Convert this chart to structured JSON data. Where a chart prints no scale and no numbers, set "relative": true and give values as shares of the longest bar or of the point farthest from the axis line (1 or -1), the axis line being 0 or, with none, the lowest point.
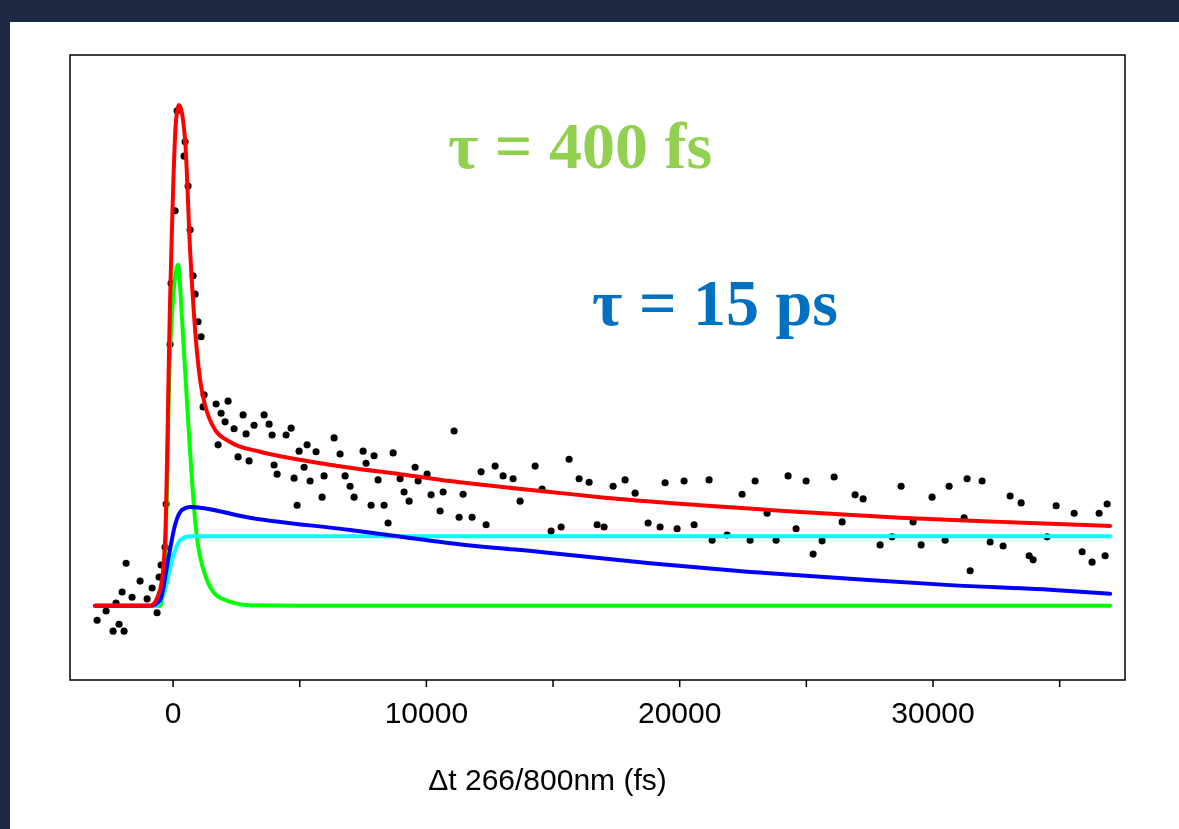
{
  "chart_data": {
    "type": "line",
    "relative": true,
    "xlabel": "Δt 266/800nm (fs)",
    "annotations": [
      "τ = 400 fs",
      "τ  = 15 ps"
    ],
    "xlim": [
      -4070,
      37580
    ],
    "xticks": [
      0,
      {
        "value": 5000,
        "label": null
      },
      10000,
      {
        "value": 15000,
        "label": null
      },
      20000,
      {
        "value": 25000,
        "label": null
      },
      30000,
      {
        "value": 35000,
        "label": null
      }
    ],
    "grid": false,
    "series": [
      {
        "type": "scatter",
        "marker": "circle",
        "color": "#000000",
        "x": [
          -3000,
          -2645,
          -2369,
          -2132,
          -1935,
          -2250,
          -2013,
          -1856,
          -1619,
          -1303,
          -1026,
          -829,
          -632,
          -553,
          -474,
          -316,
          -276,
          -118,
          -79,
          79,
          158,
          434,
          474,
          592,
          671,
          790,
          869,
          987,
          1105,
          1184,
          1224,
          1698,
          1777,
          1895,
          2053,
          2171,
          2408,
          2566,
          2764,
          2882,
          3000,
          3198,
          3593,
          3790,
          3908,
          3987,
          4106,
          4461,
          4659,
          4777,
          4896,
          4974,
          5172,
          5290,
          5409,
          5646,
          5882,
          5961,
          6356,
          6593,
          6791,
          6988,
          7146,
          7501,
          7620,
          7817,
          7935,
          8093,
          8330,
          8488,
          8686,
          8962,
          9120,
          9317,
          9554,
          9673,
          10028,
          10186,
          10541,
          10660,
          11094,
          11291,
          11449,
          11804,
          12160,
          12357,
          12712,
          13028,
          13423,
          13699,
          14292,
          14568,
          14923,
          15318,
          15634,
          16029,
          16424,
          16740,
          17016,
          17371,
          17845,
          18240,
          18753,
          19227,
          19424,
          19898,
          20174,
          20569,
          21161,
          21280,
          21872,
          22464,
          22780,
          22977,
          23451,
          23806,
          24280,
          24596,
          24991,
          25267,
          25622,
          26096,
          26412,
          26925,
          27241,
          27912,
          28386,
          28741,
          29215,
          29531,
          29965,
          30479,
          30637,
          31229,
          31347,
          31466,
          31939,
          32255,
          32768,
          33045,
          33479,
          33795,
          33953,
          34506,
          34861,
          35572,
          35888,
          36282,
          36558,
          36795,
          36874
        ],
        "values": [
          0.104,
          0.12,
          0.085,
          0.097,
          0.085,
          0.134,
          0.153,
          0.203,
          0.144,
          0.172,
          0.141,
          0.16,
          0.117,
          0.179,
          0.2,
          0.231,
          0.306,
          0.584,
          0.69,
          0.816,
          0.99,
          0.911,
          0.936,
          0.859,
          0.783,
          0.703,
          0.671,
          0.623,
          0.597,
          0.475,
          0.496,
          0.48,
          0.409,
          0.464,
          0.449,
          0.485,
          0.437,
          0.388,
          0.461,
          0.428,
          0.381,
          0.443,
          0.461,
          0.445,
          0.426,
          0.374,
          0.358,
          0.426,
          0.438,
          0.351,
          0.304,
          0.398,
          0.37,
          0.409,
          0.346,
          0.397,
          0.318,
          0.355,
          0.421,
          0.393,
          0.355,
          0.337,
          0.318,
          0.398,
          0.377,
          0.304,
          0.39,
          0.348,
          0.304,
          0.273,
          0.395,
          0.35,
          0.327,
          0.311,
          0.37,
          0.346,
          0.358,
          0.322,
          0.294,
          0.327,
          0.433,
          0.283,
          0.323,
          0.283,
          0.362,
          0.27,
          0.372,
          0.355,
          0.35,
          0.311,
          0.372,
          0.332,
          0.259,
          0.266,
          0.384,
          0.35,
          0.344,
          0.27,
          0.266,
          0.337,
          0.348,
          0.325,
          0.273,
          0.266,
          0.343,
          0.263,
          0.346,
          0.27,
          0.348,
          0.243,
          0.252,
          0.323,
          0.243,
          0.346,
          0.29,
          0.243,
          0.355,
          0.263,
          0.346,
          0.219,
          0.242,
          0.353,
          0.275,
          0.322,
          0.315,
          0.235,
          0.249,
          0.337,
          0.275,
          0.235,
          0.318,
          0.243,
          0.337,
          0.282,
          0.35,
          0.19,
          0.346,
          0.24,
          0.233,
          0.32,
          0.308,
          0.216,
          0.209,
          0.249,
          0.303,
          0.29,
          0.223,
          0.205,
          0.29,
          0.216,
          0.306
        ]
      },
      {
        "color": "#00ff00",
        "x": [
          -3080,
          -513,
          -316,
          -118,
          197,
          355,
          592,
          869,
          1263,
          1856,
          3040,
          5014,
          36992
        ],
        "values": [
          0.129,
          0.129,
          0.209,
          0.574,
          0.722,
          0.626,
          0.452,
          0.278,
          0.183,
          0.143,
          0.13,
          0.129,
          0.129
        ]
      },
      {
        "color": "#00ffff",
        "x": [
          -3080,
          -711,
          -316,
          -39,
          276,
          671,
          36992
        ],
        "values": [
          0.129,
          0.129,
          0.157,
          0.209,
          0.243,
          0.25,
          0.25
        ]
      },
      {
        "color": "#0000ff",
        "x": [
          -3080,
          -908,
          -513,
          -197,
          79,
          355,
          671,
          3040,
          6988,
          10936,
          14884,
          18832,
          22779,
          26727,
          30675,
          34623,
          36992
        ],
        "values": [
          0.129,
          0.129,
          0.139,
          0.209,
          0.27,
          0.296,
          0.301,
          0.282,
          0.261,
          0.238,
          0.221,
          0.203,
          0.188,
          0.176,
          0.165,
          0.157,
          0.15
        ]
      },
      {
        "color": "#ff0000",
        "x": [
          -3080,
          -908,
          -513,
          -316,
          -118,
          118,
          237,
          474,
          671,
          869,
          1066,
          1263,
          1658,
          2250,
          3435,
          5014,
          6988,
          8962,
          10936,
          12910,
          14884,
          16858,
          20806,
          24753,
          28701,
          32649,
          36992
        ],
        "values": [
          0.129,
          0.129,
          0.157,
          0.243,
          0.661,
          0.974,
          1.0,
          0.939,
          0.748,
          0.609,
          0.522,
          0.478,
          0.435,
          0.414,
          0.397,
          0.383,
          0.369,
          0.358,
          0.346,
          0.336,
          0.327,
          0.318,
          0.304,
          0.292,
          0.282,
          0.275,
          0.268
        ]
      }
    ]
  }
}
